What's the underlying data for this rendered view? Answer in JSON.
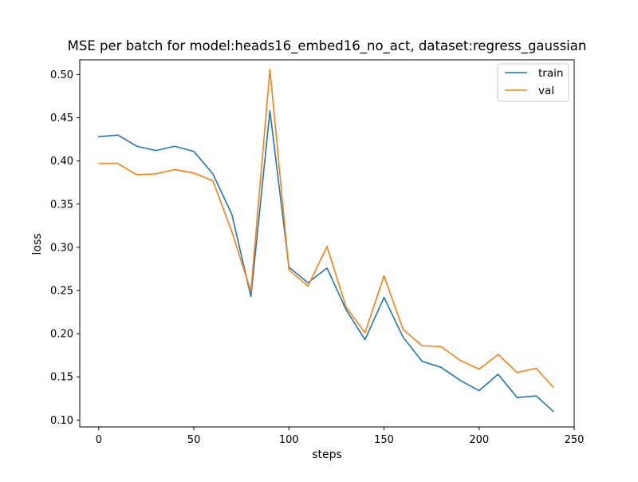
{
  "chart_data": {
    "type": "line",
    "title": "MSE per batch for model:heads16_embed16_no_act, dataset:regress_gaussian",
    "xlabel": "steps",
    "ylabel": "loss",
    "xlim": [
      -10,
      250
    ],
    "ylim": [
      0.092,
      0.517
    ],
    "xticks": [
      0,
      50,
      100,
      150,
      200,
      250
    ],
    "yticks": [
      0.1,
      0.15,
      0.2,
      0.25,
      0.3,
      0.35,
      0.4,
      0.45,
      0.5
    ],
    "xtick_labels": [
      "0",
      "50",
      "100",
      "150",
      "200",
      "250"
    ],
    "ytick_labels": [
      "0.10",
      "0.15",
      "0.20",
      "0.25",
      "0.30",
      "0.35",
      "0.40",
      "0.45",
      "0.50"
    ],
    "grid": false,
    "legend_position": "top-right",
    "x": [
      0,
      10,
      20,
      30,
      40,
      50,
      60,
      70,
      80,
      90,
      100,
      110,
      120,
      130,
      140,
      150,
      160,
      170,
      180,
      190,
      200,
      210,
      220,
      230,
      239
    ],
    "series": [
      {
        "name": "train",
        "color": "#1f77b4",
        "values": [
          0.428,
          0.43,
          0.417,
          0.412,
          0.417,
          0.411,
          0.385,
          0.338,
          0.243,
          0.458,
          0.277,
          0.259,
          0.276,
          0.228,
          0.193,
          0.242,
          0.196,
          0.168,
          0.161,
          0.146,
          0.134,
          0.153,
          0.126,
          0.128,
          0.11
        ]
      },
      {
        "name": "val",
        "color": "#ff7f0e",
        "values": [
          0.397,
          0.397,
          0.384,
          0.385,
          0.39,
          0.386,
          0.377,
          0.318,
          0.249,
          0.506,
          0.274,
          0.255,
          0.301,
          0.231,
          0.201,
          0.267,
          0.205,
          0.186,
          0.185,
          0.169,
          0.159,
          0.176,
          0.155,
          0.16,
          0.138
        ]
      }
    ]
  }
}
